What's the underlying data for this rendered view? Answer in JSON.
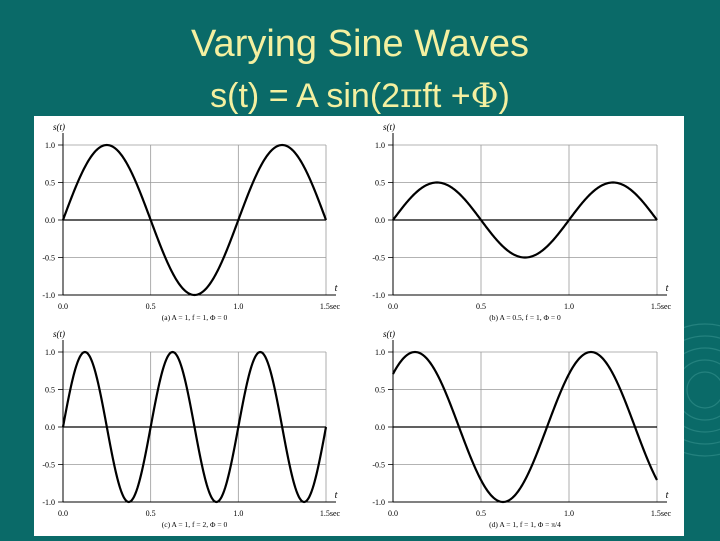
{
  "slide": {
    "title": "Varying Sine Waves",
    "formula": {
      "prefix": "s(t) = A sin(2",
      "pi": "π",
      "mid": "ft +",
      "phi": "Φ",
      "suffix": ")"
    }
  },
  "colors": {
    "background": "#0a6a68",
    "title": "#f4f0a0",
    "panel": "#ffffff",
    "curve": "#000000"
  },
  "chart_data": [
    {
      "type": "line",
      "ylabel": "s(t)",
      "xlabel": "t",
      "caption": "(a) A = 1, f = 1, Φ = 0",
      "A": 1,
      "f": 1,
      "phase": 0,
      "xlim": [
        0,
        1.5
      ],
      "ylim": [
        -1,
        1
      ],
      "xticks": [
        0,
        0.5,
        1,
        1.5
      ],
      "xtick_labels": [
        "0.0",
        "0.5",
        "1.0",
        "1.5sec"
      ],
      "yticks": [
        1,
        0.5,
        0,
        -0.5,
        -1
      ],
      "ytick_labels": [
        "1.0",
        "0.5",
        "0.0",
        "-0.5",
        "-1.0"
      ],
      "grid": true
    },
    {
      "type": "line",
      "ylabel": "s(t)",
      "xlabel": "t",
      "caption": "(b) A = 0.5, f = 1, Φ = 0",
      "A": 0.5,
      "f": 1,
      "phase": 0,
      "xlim": [
        0,
        1.5
      ],
      "ylim": [
        -1,
        1
      ],
      "xticks": [
        0,
        0.5,
        1,
        1.5
      ],
      "xtick_labels": [
        "0.0",
        "0.5",
        "1.0",
        "1.5sec"
      ],
      "yticks": [
        1,
        0.5,
        0,
        -0.5,
        -1
      ],
      "ytick_labels": [
        "1.0",
        "0.5",
        "0.0",
        "-0.5",
        "-1.0"
      ],
      "grid": true
    },
    {
      "type": "line",
      "ylabel": "s(t)",
      "xlabel": "t",
      "caption": "(c) A = 1, f = 2, Φ = 0",
      "A": 1,
      "f": 2,
      "phase": 0,
      "xlim": [
        0,
        1.5
      ],
      "ylim": [
        -1,
        1
      ],
      "xticks": [
        0,
        0.5,
        1,
        1.5
      ],
      "xtick_labels": [
        "0.0",
        "0.5",
        "1.0",
        "1.5sec"
      ],
      "yticks": [
        1,
        0.5,
        0,
        -0.5,
        -1
      ],
      "ytick_labels": [
        "1.0",
        "0.5",
        "0.0",
        "-0.5",
        "-1.0"
      ],
      "grid": true
    },
    {
      "type": "line",
      "ylabel": "s(t)",
      "xlabel": "t",
      "caption": "(d) A = 1, f = 1, Φ = π/4",
      "A": 1,
      "f": 1,
      "phase": 0.7853981634,
      "xlim": [
        0,
        1.5
      ],
      "ylim": [
        -1,
        1
      ],
      "xticks": [
        0,
        0.5,
        1,
        1.5
      ],
      "xtick_labels": [
        "0.0",
        "0.5",
        "1.0",
        "1.5sec"
      ],
      "yticks": [
        1,
        0.5,
        0,
        -0.5,
        -1
      ],
      "ytick_labels": [
        "1.0",
        "0.5",
        "0.0",
        "-0.5",
        "-1.0"
      ],
      "grid": true
    }
  ]
}
